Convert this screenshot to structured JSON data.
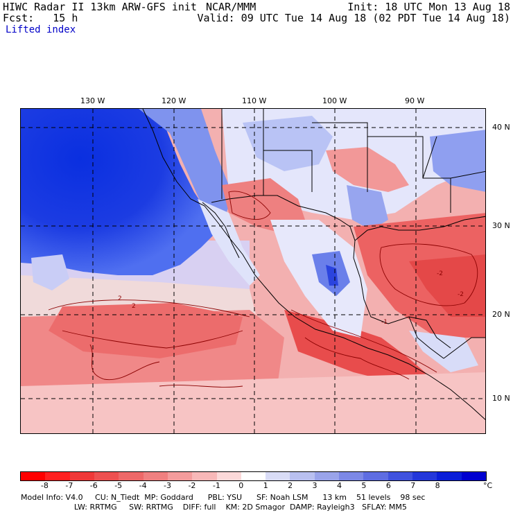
{
  "header": {
    "title_left": "HIWC Radar II 13km ARW-GFS init",
    "title_center": "NCAR/MMM",
    "init": "Init: 18 UTC Mon 13 Aug 18",
    "fcst": "Fcst:   15 h",
    "valid": "Valid: 09 UTC Tue 14 Aug 18 (02 PDT Tue 14 Aug 18)",
    "field": "Lifted index"
  },
  "map": {
    "lon_labels": [
      "130 W",
      "120 W",
      "110 W",
      "100 W",
      "90 W"
    ],
    "lat_labels": [
      "40 N",
      "30 N",
      "20 N",
      "10 N"
    ],
    "contour_labels": [
      "2",
      "2",
      "-1",
      "-2",
      "-2"
    ],
    "colors": {
      "deep_blue": "#0a2fe0",
      "mid_blue": "#4f6ff0",
      "light_blue": "#b9c3f5",
      "white": "#ffffff",
      "light_red": "#f6b4b4",
      "mid_red": "#ee7070",
      "deep_red": "#e43a3a",
      "contour": "#8b0000",
      "border": "#000000"
    }
  },
  "colorbar": {
    "ticks": [
      "-8",
      "-7",
      "-6",
      "-5",
      "-4",
      "-3",
      "-2",
      "-1",
      "0",
      "1",
      "2",
      "3",
      "4",
      "5",
      "6",
      "7",
      "8"
    ],
    "unit": "°C",
    "colors": [
      "#ff0000",
      "#ff2020",
      "#f03838",
      "#ee5050",
      "#ee6868",
      "#f08080",
      "#f49c9c",
      "#f8b8b8",
      "#fbd9d9",
      "#ffffff",
      "#d9dcf6",
      "#b9c0f0",
      "#9aa4ea",
      "#7c88e6",
      "#5e6de2",
      "#4052de",
      "#2337da",
      "#0a1ed8",
      "#0000d0"
    ]
  },
  "model_info": {
    "line1": "Model Info: V4.0     CU: N_Tiedt  MP: Goddard      PBL: YSU      SF: Noah LSM      13 km    51 levels    98 sec",
    "line2": "                      LW: RRTMG     SW: RRTMG    DIFF: full    KM: 2D Smagor  DAMP: Rayleigh3   SFLAY: MM5"
  }
}
